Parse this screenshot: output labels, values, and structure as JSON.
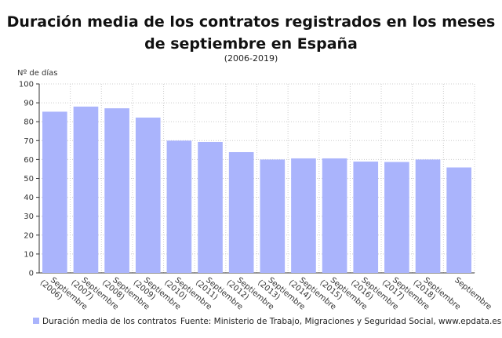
{
  "chart_data": {
    "type": "bar",
    "title": "Duración media de los contratos registrados en los meses de septiembre en España",
    "subtitle": "(2006-2019)",
    "ylabel": "Nº de días",
    "xlabel": "",
    "ylim": [
      0,
      100
    ],
    "yticks": [
      0,
      10,
      20,
      30,
      40,
      50,
      60,
      70,
      80,
      90,
      100
    ],
    "grid": true,
    "categories": [
      "Septiembre (2006)",
      "Septiembre (2007)",
      "Septiembre (2008)",
      "Septiembre (2009)",
      "Septiembre (2010)",
      "Septiembre (2011)",
      "Septiembre (2012)",
      "Septiembre (2013)",
      "Septiembre (2014)",
      "Septiembre (2015)",
      "Septiembre (2016)",
      "Septiembre (2017)",
      "Septiembre (2018)",
      "Septiembre"
    ],
    "series": [
      {
        "name": "Duración media de los contratos",
        "values": [
          85.3,
          88,
          87.1,
          82.2,
          70,
          69.3,
          63.9,
          60,
          60.6,
          60.6,
          58.9,
          58.7,
          60,
          55.8
        ],
        "color": "#aab4fc"
      }
    ],
    "legend": "bottom-left",
    "source": "Fuente: Ministerio de Trabajo, Migraciones y Seguridad Social, www.epdata.es"
  }
}
